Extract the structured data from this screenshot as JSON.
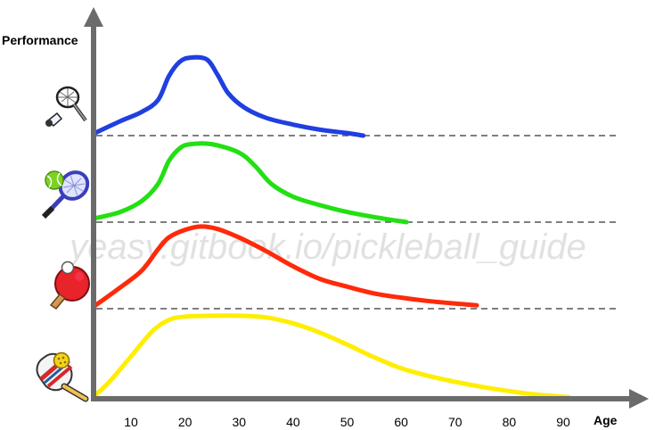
{
  "chart_data": {
    "type": "line",
    "xlabel": "Age",
    "ylabel": "Performance",
    "xlim": [
      2,
      100
    ],
    "x_ticks": [
      10,
      20,
      30,
      40,
      50,
      60,
      70,
      80,
      90
    ],
    "watermark": "yeasy.gitbook.io/pickleball_guide",
    "grid": false,
    "legend": "none",
    "series": [
      {
        "color": "#1f3fe0",
        "icon": "badminton-racket-icon",
        "baseline": 3,
        "x": [
          3,
          8,
          12,
          15,
          17,
          19,
          21,
          24,
          26,
          28,
          31,
          35,
          40,
          45,
          50,
          53
        ],
        "y": [
          3.02,
          3.17,
          3.28,
          3.42,
          3.7,
          3.87,
          3.92,
          3.9,
          3.72,
          3.5,
          3.33,
          3.21,
          3.13,
          3.07,
          3.03,
          3.0
        ]
      },
      {
        "color": "#22e012",
        "icon": "tennis-racket-icon",
        "baseline": 2,
        "x": [
          3,
          8,
          12,
          15,
          17,
          19,
          21,
          25,
          30,
          33,
          36,
          40,
          45,
          50,
          55,
          61
        ],
        "y": [
          2.04,
          2.12,
          2.25,
          2.45,
          2.72,
          2.87,
          2.92,
          2.92,
          2.82,
          2.66,
          2.45,
          2.3,
          2.2,
          2.12,
          2.06,
          2.0
        ]
      },
      {
        "color": "#ff2a0a",
        "icon": "ping-pong-paddle-icon",
        "baseline": 1,
        "x": [
          3,
          8,
          12,
          15,
          17,
          20,
          23,
          26,
          30,
          35,
          40,
          45,
          50,
          55,
          60,
          65,
          70,
          74
        ],
        "y": [
          1.02,
          1.25,
          1.45,
          1.7,
          1.84,
          1.93,
          1.97,
          1.94,
          1.84,
          1.68,
          1.5,
          1.35,
          1.26,
          1.18,
          1.13,
          1.09,
          1.06,
          1.04
        ]
      },
      {
        "color": "#ffee00",
        "icon": "pickleball-paddle-icon",
        "baseline": 0,
        "x": [
          3,
          6,
          10,
          14,
          17,
          20,
          25,
          30,
          35,
          40,
          45,
          50,
          55,
          60,
          65,
          70,
          75,
          80,
          85,
          91
        ],
        "y": [
          0.02,
          0.2,
          0.5,
          0.8,
          0.93,
          0.97,
          0.98,
          0.98,
          0.96,
          0.89,
          0.78,
          0.64,
          0.49,
          0.36,
          0.27,
          0.2,
          0.14,
          0.09,
          0.05,
          0.02
        ]
      }
    ]
  }
}
